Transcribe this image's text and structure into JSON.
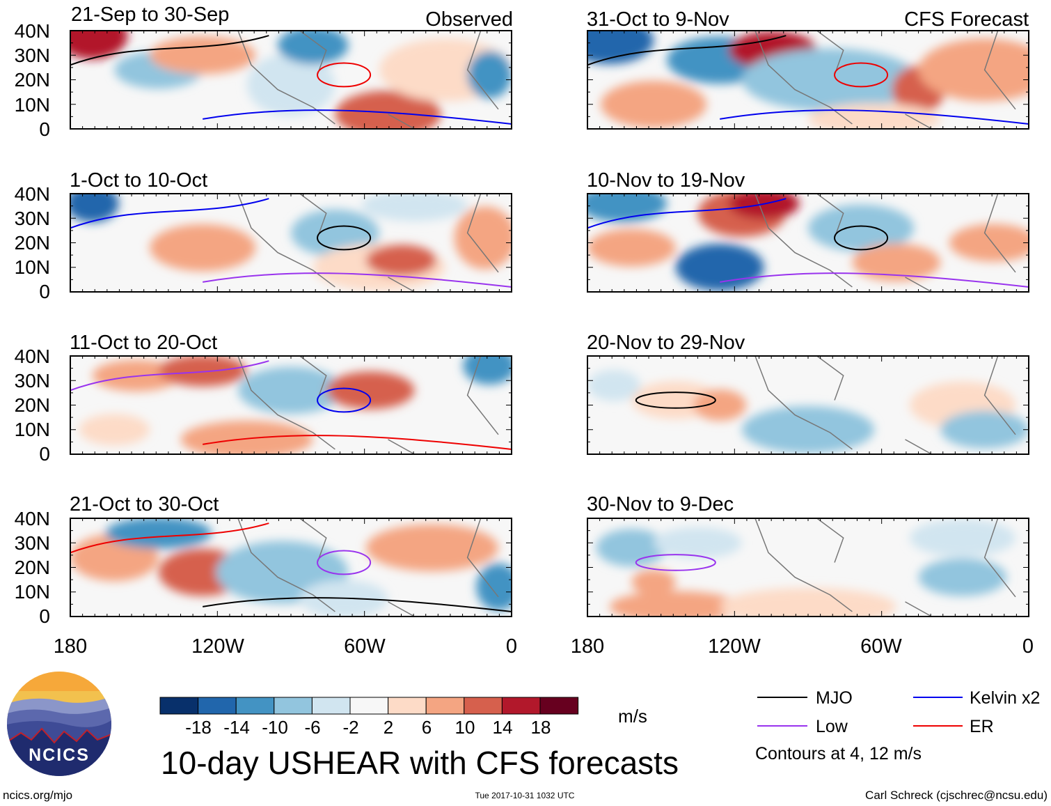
{
  "chart_data": {
    "type": "heatmap",
    "title": "10-day USHEAR with CFS forecasts",
    "variable": "USHEAR",
    "units": "m/s",
    "region": {
      "lon_range": [
        -180,
        0
      ],
      "lat_range": [
        0,
        40
      ]
    },
    "lat_tick_labels": [
      "40N",
      "30N",
      "20N",
      "10N",
      "0"
    ],
    "lon_tick_labels": [
      "180",
      "120W",
      "60W",
      "0"
    ],
    "columns": [
      {
        "header": "Observed",
        "panels": [
          {
            "label": "21-Sep to 30-Sep"
          },
          {
            "label": "1-Oct to 10-Oct"
          },
          {
            "label": "11-Oct to 20-Oct"
          },
          {
            "label": "21-Oct to 30-Oct"
          }
        ]
      },
      {
        "header": "CFS Forecast",
        "panels": [
          {
            "label": "31-Oct to 9-Nov"
          },
          {
            "label": "10-Nov to 19-Nov"
          },
          {
            "label": "20-Nov to 29-Nov"
          },
          {
            "label": "30-Nov to 9-Dec"
          }
        ]
      }
    ],
    "colorbar": {
      "labels": [
        "-18",
        "-14",
        "-10",
        "-6",
        "-2",
        "2",
        "6",
        "10",
        "14",
        "18"
      ],
      "units": "m/s",
      "colors": [
        "#08306b",
        "#2166ac",
        "#4393c3",
        "#92c5de",
        "#d1e5f0",
        "#f7f7f7",
        "#fddbc7",
        "#f4a582",
        "#d6604d",
        "#b2182b",
        "#67001f"
      ]
    },
    "legend": [
      {
        "name": "MJO",
        "color": "#000000"
      },
      {
        "name": "Kelvin x2",
        "color": "#0000ee"
      },
      {
        "name": "Low",
        "color": "#9933ee"
      },
      {
        "name": "ER",
        "color": "#ee0000"
      }
    ],
    "contour_note": "Contours at 4, 12 m/s"
  },
  "logo": {
    "text": "NCICS"
  },
  "footer": {
    "url": "ncics.org/mjo",
    "timestamp": "Tue 2017-10-31 1032 UTC",
    "credit": "Carl Schreck (cjschrec@ncsu.edu)"
  }
}
